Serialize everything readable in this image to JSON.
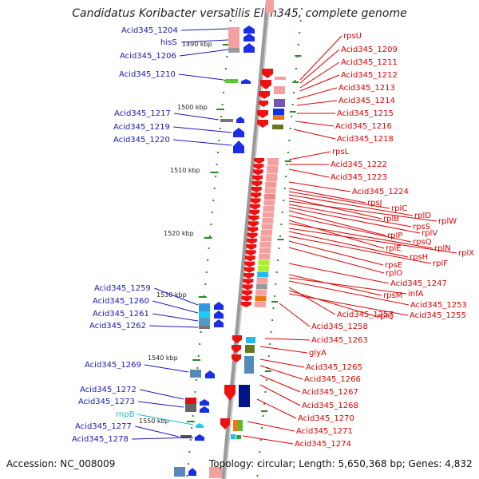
{
  "title": "Candidatus Koribacter versatilis Ellin345, complete genome",
  "accession_text": "Accession: NC_008009",
  "topology_text": "Topology: circular; Length: 5,650,368 bp; Genes: 4,832",
  "colors": {
    "left_label": "#1a1ab4",
    "right_label": "#dd0000",
    "rna_label": "#1fb8c8",
    "backbone": "#9a9a9a",
    "tick": "#2a8a2a"
  },
  "scale_labels": [
    "1490 kbp",
    "1500 kbp",
    "1510 kbp",
    "1520 kbp",
    "1530 kbp",
    "1540 kbp",
    "1550 kbp"
  ],
  "left_labels": [
    "Acid345_1204",
    "hisS",
    "Acid345_1206",
    "Acid345_1210",
    "Acid345_1217",
    "Acid345_1219",
    "Acid345_1220",
    "Acid345_1259",
    "Acid345_1260",
    "Acid345_1261",
    "Acid345_1262",
    "Acid345_1269",
    "Acid345_1272",
    "Acid345_1273",
    "rnpB",
    "Acid345_1277",
    "Acid345_1278"
  ],
  "right_labels": [
    "rpsU",
    "Acid345_1209",
    "Acid345_1211",
    "Acid345_1212",
    "Acid345_1213",
    "Acid345_1214",
    "Acid345_1215",
    "Acid345_1216",
    "Acid345_1218",
    "rpsL",
    "Acid345_1222",
    "Acid345_1223",
    "Acid345_1224",
    "rpsJ",
    "rplC",
    "rplD",
    "rplB",
    "rplW",
    "rpsS",
    "rplV",
    "rplP",
    "rpsQ",
    "rplE",
    "rplN",
    "rplX",
    "rpsH",
    "rplF",
    "rpsE",
    "rplO",
    "Acid345_1247",
    "rpsM",
    "infA",
    "Acid345_1253",
    "Acid345_1257",
    "rplQ",
    "Acid345_1255",
    "Acid345_1258",
    "Acid345_1263",
    "glyA",
    "Acid345_1265",
    "Acid345_1266",
    "Acid345_1267",
    "Acid345_1268",
    "Acid345_1270",
    "Acid345_1271",
    "Acid345_1274"
  ]
}
